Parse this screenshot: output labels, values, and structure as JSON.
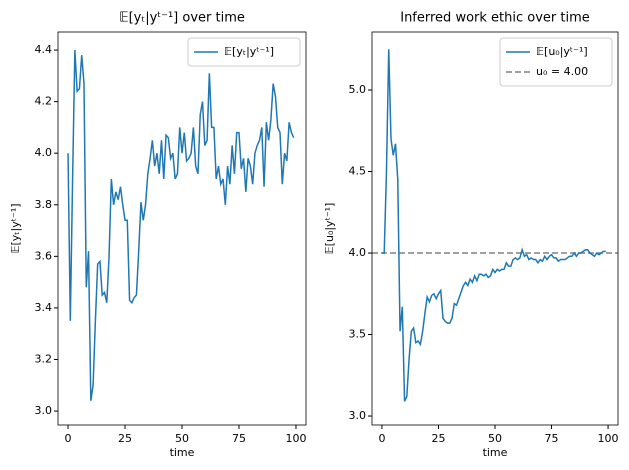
{
  "chart_data": [
    {
      "type": "line",
      "title": "𝔼[yₜ|yᵗ⁻¹] over time",
      "xlabel": "time",
      "ylabel": "𝔼[yₜ|yᵗ⁻¹]",
      "x": [
        0,
        1,
        2,
        3,
        4,
        5,
        6,
        7,
        8,
        9,
        10,
        11,
        12,
        13,
        14,
        15,
        16,
        17,
        18,
        19,
        20,
        21,
        22,
        23,
        24,
        25,
        26,
        27,
        28,
        29,
        30,
        31,
        32,
        33,
        34,
        35,
        36,
        37,
        38,
        39,
        40,
        41,
        42,
        43,
        44,
        45,
        46,
        47,
        48,
        49,
        50,
        51,
        52,
        53,
        54,
        55,
        56,
        57,
        58,
        59,
        60,
        61,
        62,
        63,
        64,
        65,
        66,
        67,
        68,
        69,
        70,
        71,
        72,
        73,
        74,
        75,
        76,
        77,
        78,
        79,
        80,
        81,
        82,
        83,
        84,
        85,
        86,
        87,
        88,
        89,
        90,
        91,
        92,
        93,
        94,
        95,
        96,
        97,
        98,
        99
      ],
      "series": [
        {
          "name": "𝔼[yₜ|yᵗ⁻¹]",
          "color": "#1f77b4",
          "values": [
            4.0,
            3.35,
            3.9,
            4.4,
            4.24,
            4.25,
            4.38,
            4.27,
            3.48,
            3.62,
            3.04,
            3.1,
            3.35,
            3.57,
            3.58,
            3.45,
            3.46,
            3.42,
            3.6,
            3.9,
            3.8,
            3.85,
            3.82,
            3.87,
            3.8,
            3.74,
            3.74,
            3.43,
            3.42,
            3.44,
            3.45,
            3.62,
            3.81,
            3.74,
            3.8,
            3.92,
            3.98,
            4.05,
            3.95,
            4.0,
            3.92,
            4.05,
            3.9,
            4.07,
            4.06,
            3.98,
            4.0,
            3.9,
            3.92,
            4.1,
            4.0,
            4.08,
            3.97,
            3.98,
            4.0,
            4.1,
            3.95,
            3.92,
            4.15,
            4.2,
            4.03,
            4.05,
            4.31,
            4.1,
            4.1,
            3.9,
            3.95,
            3.88,
            3.9,
            3.8,
            3.95,
            3.88,
            4.03,
            3.92,
            4.08,
            4.08,
            3.94,
            3.98,
            3.85,
            3.98,
            3.95,
            3.88,
            4.0,
            4.03,
            4.05,
            4.1,
            3.87,
            4.12,
            4.05,
            4.13,
            4.27,
            4.22,
            4.1,
            4.08,
            3.88,
            4.0,
            3.97,
            4.12,
            4.08,
            4.06
          ]
        }
      ],
      "hlines": [],
      "xlim": [
        -4.4,
        104.4
      ],
      "xticks": [
        0,
        25,
        50,
        75,
        100
      ],
      "ylim": [
        2.946,
        4.47
      ],
      "yticks": [
        {
          "value": 3.0,
          "label": "3.0"
        },
        {
          "value": 3.2,
          "label": "3.2"
        },
        {
          "value": 3.4,
          "label": "3.4"
        },
        {
          "value": 3.6,
          "label": "3.6"
        },
        {
          "value": 3.8,
          "label": "3.8"
        },
        {
          "value": 4.0,
          "label": "4.0"
        },
        {
          "value": 4.2,
          "label": "4.2"
        },
        {
          "value": 4.4,
          "label": "4.4"
        }
      ],
      "legend": "upper right"
    },
    {
      "type": "line",
      "title": "Inferred work ethic over time",
      "xlabel": "time",
      "ylabel": "𝔼[u₀|yᵗ⁻¹]",
      "x": [
        0,
        1,
        2,
        3,
        4,
        5,
        6,
        7,
        8,
        9,
        10,
        11,
        12,
        13,
        14,
        15,
        16,
        17,
        18,
        19,
        20,
        21,
        22,
        23,
        24,
        25,
        26,
        27,
        28,
        29,
        30,
        31,
        32,
        33,
        34,
        35,
        36,
        37,
        38,
        39,
        40,
        41,
        42,
        43,
        44,
        45,
        46,
        47,
        48,
        49,
        50,
        51,
        52,
        53,
        54,
        55,
        56,
        57,
        58,
        59,
        60,
        61,
        62,
        63,
        64,
        65,
        66,
        67,
        68,
        69,
        70,
        71,
        72,
        73,
        74,
        75,
        76,
        77,
        78,
        79,
        80,
        81,
        82,
        83,
        84,
        85,
        86,
        87,
        88,
        89,
        90,
        91,
        92,
        93,
        94,
        95,
        96,
        97,
        98,
        99
      ],
      "series": [
        {
          "name": "𝔼[u₀|yᵗ⁻¹]",
          "color": "#1f77b4",
          "values": [
            4.0,
            4.0,
            4.5,
            5.25,
            4.7,
            4.6,
            4.67,
            4.45,
            3.52,
            3.67,
            3.09,
            3.12,
            3.35,
            3.52,
            3.54,
            3.45,
            3.46,
            3.44,
            3.52,
            3.63,
            3.73,
            3.7,
            3.74,
            3.75,
            3.72,
            3.75,
            3.77,
            3.6,
            3.58,
            3.57,
            3.57,
            3.6,
            3.69,
            3.68,
            3.72,
            3.76,
            3.8,
            3.82,
            3.8,
            3.84,
            3.82,
            3.86,
            3.83,
            3.87,
            3.87,
            3.86,
            3.87,
            3.85,
            3.86,
            3.9,
            3.88,
            3.9,
            3.89,
            3.9,
            3.9,
            3.94,
            3.92,
            3.92,
            3.96,
            3.97,
            3.96,
            3.97,
            4.02,
            3.98,
            3.99,
            3.96,
            3.97,
            3.96,
            3.96,
            3.94,
            3.96,
            3.95,
            3.98,
            3.96,
            3.98,
            3.99,
            3.97,
            3.97,
            3.95,
            3.96,
            3.96,
            3.96,
            3.97,
            3.98,
            3.98,
            4.0,
            3.98,
            4.0,
            4.0,
            4.01,
            4.02,
            4.02,
            4.0,
            3.99,
            3.98,
            4.0,
            3.99,
            4.0,
            4.01,
            4.01
          ]
        }
      ],
      "hlines": [
        {
          "name": "u₀ = 4.00",
          "value": 4.0,
          "color": "#808080",
          "style": "dashed"
        }
      ],
      "xlim": [
        -4.4,
        104.4
      ],
      "xticks": [
        0,
        25,
        50,
        75,
        100
      ],
      "ylim": [
        2.945,
        5.356
      ],
      "yticks": [
        {
          "value": 3.0,
          "label": "3.0"
        },
        {
          "value": 3.5,
          "label": "3.5"
        },
        {
          "value": 4.0,
          "label": "4.0"
        },
        {
          "value": 4.5,
          "label": "4.5"
        },
        {
          "value": 5.0,
          "label": "5.0"
        }
      ],
      "legend": "upper right"
    }
  ]
}
